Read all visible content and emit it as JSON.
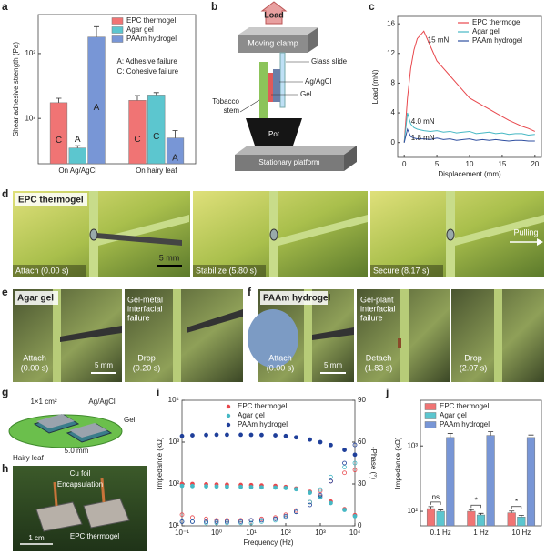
{
  "panel_labels": [
    "a",
    "b",
    "c",
    "d",
    "e",
    "f",
    "g",
    "h",
    "i",
    "j"
  ],
  "chart_data": [
    {
      "type": "bar",
      "y_label": "Shear adhesive strength (Pa)",
      "categories": [
        "On Ag/AgCl",
        "On hairy leaf"
      ],
      "log_y": true,
      "ylim": [
        20,
        4000
      ],
      "yticks": [
        {
          "value": 100,
          "label": "10²"
        },
        {
          "value": 1000,
          "label": "10³"
        }
      ],
      "legend": "upper right",
      "notes": [
        "A: Adhesive failure",
        "C: Cohesive failure"
      ],
      "series": [
        {
          "name": "EPC thermogel",
          "color": "#f07474",
          "values": [
            175,
            190
          ],
          "errors": [
            30,
            35
          ],
          "bar_text": [
            "C",
            "C"
          ]
        },
        {
          "name": "Agar gel",
          "color": "#5cc6cf",
          "values": [
            35,
            230
          ],
          "errors": [
            3,
            20
          ],
          "bar_text": [
            "A",
            "C"
          ]
        },
        {
          "name": "PAAm hydrogel",
          "color": "#7896d6",
          "values": [
            1800,
            50
          ],
          "errors": [
            800,
            15
          ],
          "bar_text": [
            "A",
            "A"
          ]
        }
      ]
    },
    {
      "type": "line",
      "x_label": "Displacement (mm)",
      "y_label": "Load (mN)",
      "x": [
        0,
        0.5,
        1,
        1.5,
        2,
        3,
        4,
        5,
        6,
        7,
        8,
        9,
        10,
        11,
        12,
        13,
        14,
        15,
        16,
        17,
        18,
        19,
        20
      ],
      "xlim": [
        -1,
        21
      ],
      "xticks": [
        0,
        5,
        10,
        15,
        20
      ],
      "ylim": [
        -2,
        17
      ],
      "yticks": [
        0,
        4,
        8,
        12,
        16
      ],
      "legend": "upper right",
      "series": [
        {
          "name": "EPC thermogel",
          "color": "#e8474c",
          "peak_label": "15 mN",
          "values": [
            0,
            6,
            10,
            12.5,
            14,
            15,
            13,
            11,
            10,
            9,
            8,
            7,
            6,
            5.5,
            5,
            4.5,
            4,
            3.5,
            3,
            2.6,
            2.2,
            1.9,
            1.5
          ]
        },
        {
          "name": "Agar gel",
          "color": "#46b8c4",
          "peak_label": "4.0 mN",
          "values": [
            0,
            4,
            2.5,
            2,
            1.8,
            1.6,
            1.5,
            1.6,
            1.4,
            1.5,
            1.3,
            1.4,
            1.5,
            1.2,
            1.3,
            1.4,
            1.2,
            1.3,
            1.1,
            1.2,
            1.2,
            1,
            1.1
          ]
        },
        {
          "name": "PAAm hydrogel",
          "color": "#2f4fa0",
          "peak_label": "1.8 mN",
          "values": [
            0,
            1.8,
            0.8,
            0.6,
            0.5,
            0.5,
            0.4,
            0.6,
            0.4,
            0.5,
            0.3,
            0.4,
            0.5,
            0.3,
            0.4,
            0.3,
            0.4,
            0.3,
            0.2,
            0.3,
            0.3,
            0.2,
            0.2
          ]
        }
      ]
    },
    {
      "type": "scatter",
      "x_label": "Frequency (Hz)",
      "y_label": "Impedance (kΩ)",
      "y2_label": "-Phase (°)",
      "log_x": true,
      "log_y": true,
      "x": [
        0.1,
        0.2,
        0.5,
        1,
        2,
        5,
        10,
        20,
        50,
        100,
        200,
        500,
        1000,
        2000,
        5000,
        10000
      ],
      "xlim": [
        0.1,
        10000
      ],
      "xticks": [
        {
          "value": 0.1,
          "label": "10⁻¹"
        },
        {
          "value": 1,
          "label": "10⁰"
        },
        {
          "value": 10,
          "label": "10¹"
        },
        {
          "value": 100,
          "label": "10²"
        },
        {
          "value": 1000,
          "label": "10³"
        },
        {
          "value": 10000,
          "label": "10⁴"
        }
      ],
      "ylim": [
        10,
        10000
      ],
      "yticks": [
        {
          "value": 10,
          "label": "10¹"
        },
        {
          "value": 100,
          "label": "10²"
        },
        {
          "value": 1000,
          "label": "10³"
        },
        {
          "value": 10000,
          "label": "10⁴"
        }
      ],
      "y2lim": [
        0,
        90
      ],
      "y2ticks": [
        0,
        30,
        60,
        90
      ],
      "legend": "upper center",
      "series": [
        {
          "name": "EPC thermogel",
          "color": "#e8474c",
          "values": [
            100,
            100,
            98,
            97,
            96,
            95,
            94,
            92,
            90,
            85,
            78,
            65,
            50,
            38,
            25,
            18
          ]
        },
        {
          "name": "Agar gel",
          "color": "#46b8c4",
          "values": [
            90,
            89,
            88,
            87,
            86,
            85,
            84,
            83,
            82,
            80,
            75,
            62,
            48,
            35,
            24,
            17
          ]
        },
        {
          "name": "PAAm hydrogel",
          "color": "#1f3f9a",
          "values": [
            1400,
            1450,
            1480,
            1500,
            1500,
            1500,
            1490,
            1480,
            1450,
            1400,
            1300,
            1150,
            1000,
            850,
            650,
            500
          ]
        },
        {
          "color": "#e8474c",
          "axis": "y2",
          "marker": "open",
          "values": [
            8,
            6,
            5,
            4,
            4,
            4,
            4,
            5,
            6,
            8,
            11,
            17,
            25,
            32,
            38,
            40
          ]
        },
        {
          "color": "#46b8c4",
          "axis": "y2",
          "marker": "open",
          "values": [
            3,
            3,
            2,
            2,
            2,
            2,
            2,
            3,
            4,
            6,
            10,
            17,
            26,
            35,
            42,
            45
          ]
        },
        {
          "color": "#1f3f9a",
          "axis": "y2",
          "marker": "open",
          "values": [
            3,
            3,
            3,
            3,
            3,
            3,
            4,
            4,
            5,
            7,
            10,
            15,
            22,
            32,
            45,
            58
          ]
        }
      ]
    },
    {
      "type": "bar",
      "y_label": "Impedance (kΩ)",
      "categories": [
        "0.1 Hz",
        "1 Hz",
        "10 Hz"
      ],
      "log_y": true,
      "ylim": [
        60,
        5000
      ],
      "yticks": [
        {
          "value": 100,
          "label": "10²"
        },
        {
          "value": 1000,
          "label": "10³"
        }
      ],
      "legend": "upper left",
      "significance": [
        "ns",
        "*",
        "*"
      ],
      "series": [
        {
          "name": "EPC thermogel",
          "color": "#f07474",
          "values": [
            110,
            100,
            95
          ],
          "errors": [
            8,
            6,
            6
          ]
        },
        {
          "name": "Agar gel",
          "color": "#5cc6cf",
          "values": [
            100,
            88,
            82
          ],
          "errors": [
            5,
            5,
            5
          ]
        },
        {
          "name": "PAAm hydrogel",
          "color": "#7896d6",
          "values": [
            1350,
            1450,
            1350
          ],
          "errors": [
            200,
            200,
            120
          ]
        }
      ]
    }
  ],
  "setup_b": {
    "load": "Load",
    "clamp": "Moving clamp",
    "slide": "Glass slide",
    "electrode": "Ag/AgCl",
    "gel": "Gel",
    "stem": [
      "Tobacco",
      "stem"
    ],
    "pot": "Pot",
    "platform": "Stationary platform"
  },
  "photos_d": {
    "title": "EPC thermogel",
    "captions": [
      "Attach (0.00 s)",
      "Stabilize (5.80 s)",
      "Secure (8.17 s)"
    ],
    "scale_bar": "5 mm",
    "arrow": "Pulling"
  },
  "photos_e": {
    "title": "Agar gel",
    "note": [
      "Gel-metal",
      "interfacial",
      "failure"
    ],
    "captions": [
      [
        "Attach",
        "(0.00 s)"
      ],
      [
        "Drop",
        "(0.20 s)"
      ]
    ],
    "scale_bar": "5 mm"
  },
  "photos_f": {
    "title": "PAAm hydrogel",
    "note": [
      "Gel-plant",
      "interfacial",
      "failure"
    ],
    "captions": [
      [
        "Attach",
        "(0.00 s)"
      ],
      [
        "Detach",
        "(1.83 s)"
      ],
      [
        "Drop",
        "(2.07 s)"
      ]
    ],
    "scale_bar": "5 mm"
  },
  "schematic_g": {
    "area": "1×1 cm²",
    "electrode": "Ag/AgCl",
    "gel": "Gel",
    "gap": "5.0 mm",
    "leaf": "Hairy leaf"
  },
  "photo_h": {
    "foil": "Cu foil",
    "encapsulation": "Encapsulation",
    "gel": "EPC thermogel",
    "scale_bar": "1 cm"
  }
}
